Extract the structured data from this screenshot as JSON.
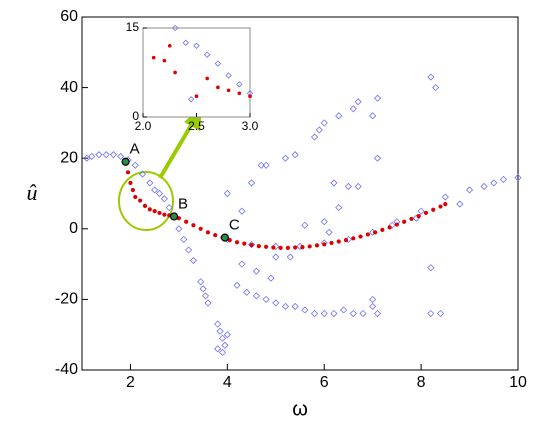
{
  "chart_data": [
    {
      "type": "scatter",
      "xlabel": "ω",
      "ylabel": "û",
      "xlim": [
        1,
        10
      ],
      "ylim": [
        -40,
        60
      ],
      "xticks": [
        2,
        4,
        6,
        8,
        10
      ],
      "yticks": [
        -40,
        -20,
        0,
        20,
        40,
        60
      ],
      "series": [
        {
          "color": "#7070ff",
          "marker": "diamond",
          "x": [
            1.1,
            1.2,
            1.35,
            1.5,
            1.65,
            1.8,
            1.95,
            2.1,
            2.25,
            2.4,
            2.5,
            2.6,
            2.7,
            2.8,
            3.0,
            3.1,
            3.2,
            3.3,
            3.45,
            3.5,
            3.55,
            3.6,
            3.8,
            3.85,
            3.9,
            3.95,
            3.8,
            3.9,
            4.0,
            4.2,
            4.4,
            4.6,
            4.8,
            5.0,
            5.2,
            5.4,
            5.6,
            5.8,
            6.0,
            6.2,
            6.4,
            6.6,
            6.8,
            7.0,
            7.0,
            7.1,
            4.0,
            4.5,
            5.0,
            5.5,
            6.0,
            6.5,
            7.0,
            7.5,
            8.0,
            8.5,
            9.0,
            9.5,
            10.0,
            4.0,
            4.3,
            4.5,
            4.7,
            4.8,
            5.2,
            5.4,
            5.8,
            5.9,
            6.0,
            6.3,
            6.6,
            6.7,
            7.0,
            7.1,
            7.1,
            6.5,
            6.7,
            8.2,
            8.3,
            8.2,
            8.2,
            8.4,
            6.2,
            6.0,
            6.3,
            5.0,
            5.3,
            4.3,
            4.6,
            4.9,
            5.6,
            6.1,
            7.4,
            7.9,
            8.8,
            9.3,
            9.7
          ],
          "y": [
            20,
            20.5,
            21,
            21,
            21,
            20.5,
            19.5,
            18,
            15.5,
            13,
            11,
            10,
            8.5,
            6,
            0,
            -3,
            -6,
            -9,
            -15,
            -17,
            -19,
            -21,
            -27,
            -29,
            -31,
            -33,
            -34,
            -35,
            -30,
            -16,
            -18,
            -19,
            -20,
            -21,
            -22,
            -22,
            -23,
            -24,
            -24,
            -24,
            -23,
            -24,
            -24,
            -20,
            -22,
            -24,
            -3,
            -4.5,
            -5,
            -5,
            -4,
            -3,
            -1,
            2,
            5,
            9,
            11,
            13,
            14.5,
            10,
            5,
            13,
            18,
            18,
            20,
            21,
            26,
            28,
            30,
            32,
            34,
            36,
            32,
            37,
            20,
            12,
            12,
            43,
            40,
            -11,
            -24,
            -24,
            13,
            2,
            6,
            -8,
            -8,
            -10,
            -12,
            -14,
            1,
            -1,
            1,
            3,
            7,
            12,
            14
          ]
        },
        {
          "color": "#e00000",
          "marker": "dot",
          "x": [
            1.95,
            2.0,
            2.05,
            2.1,
            2.2,
            2.3,
            2.4,
            2.5,
            2.6,
            2.7,
            2.8,
            3.0,
            3.15,
            3.3,
            3.45,
            3.6,
            3.75,
            3.9,
            4.05,
            4.2,
            4.35,
            4.5,
            4.65,
            4.8,
            4.95,
            5.1,
            5.25,
            5.4,
            5.55,
            5.7,
            5.85,
            6.0,
            6.15,
            6.3,
            6.45,
            6.6,
            6.75,
            6.9,
            7.05,
            7.2,
            7.35,
            7.5,
            7.65,
            7.8,
            7.95,
            8.1,
            8.25,
            8.4,
            8.5
          ],
          "y": [
            16,
            13,
            11,
            9,
            8,
            6.5,
            5.5,
            5,
            4.5,
            4,
            3.8,
            3,
            2,
            1,
            0,
            -1,
            -1.8,
            -2.5,
            -3.2,
            -3.8,
            -4.2,
            -4.6,
            -4.9,
            -5.1,
            -5.3,
            -5.4,
            -5.4,
            -5.3,
            -5.2,
            -5,
            -4.7,
            -4.4,
            -4,
            -3.6,
            -3.2,
            -2.7,
            -2.2,
            -1.6,
            -1,
            -0.3,
            0.4,
            1.2,
            2,
            2.8,
            3.6,
            4.5,
            5.4,
            6.3,
            7
          ]
        }
      ],
      "annotations": [
        {
          "text": "A",
          "x": 1.9,
          "y": 19
        },
        {
          "text": "B",
          "x": 2.9,
          "y": 3.5
        },
        {
          "text": "C",
          "x": 3.95,
          "y": -2.5
        }
      ]
    },
    {
      "type": "scatter",
      "xlim": [
        2,
        3
      ],
      "ylim": [
        0,
        15
      ],
      "xticks": [
        {
          "value": 2,
          "label": "2.0"
        },
        2.5,
        {
          "value": 3,
          "label": "3.0"
        }
      ],
      "yticks": [
        0,
        15
      ],
      "series": [
        {
          "color": "#7070ff",
          "marker": "diamond",
          "x": [
            2.3,
            2.4,
            2.5,
            2.6,
            2.7,
            2.8,
            2.9,
            2.45,
            3.0
          ],
          "y": [
            15,
            12.5,
            12,
            10.5,
            9,
            7,
            5.5,
            3,
            4
          ]
        },
        {
          "color": "#e00000",
          "marker": "dot",
          "x": [
            2.1,
            2.2,
            2.25,
            2.3,
            2.5,
            2.6,
            2.7,
            2.8,
            2.9,
            3.0
          ],
          "y": [
            10,
            9.5,
            12,
            7.5,
            3.5,
            6.5,
            5,
            4.5,
            4,
            3.5
          ]
        }
      ]
    }
  ]
}
